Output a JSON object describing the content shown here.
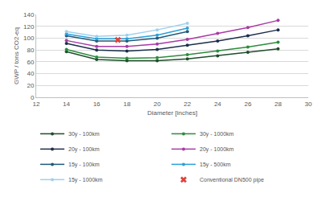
{
  "chart_data": {
    "type": "line",
    "xlabel": "Diameter [inches]",
    "ylabel": "GWP / tons CO2-eq",
    "xlim": [
      12,
      30
    ],
    "xticks": [
      12,
      14,
      16,
      18,
      20,
      22,
      24,
      26,
      28,
      30
    ],
    "ylim": [
      0,
      140
    ],
    "yticks": [
      0,
      20,
      40,
      60,
      80,
      100,
      120,
      140
    ],
    "grid": "y",
    "legend": "bottom",
    "series": [
      {
        "name": "30y - 100km",
        "color": "#1e4d2b",
        "marker": "circle",
        "type": "line",
        "x": [
          14,
          16,
          18,
          20,
          22,
          24,
          26,
          28
        ],
        "values": [
          77,
          64,
          62,
          62,
          65,
          70,
          76,
          82
        ]
      },
      {
        "name": "30y - 1000km",
        "color": "#2e8b3e",
        "marker": "circle",
        "type": "line",
        "x": [
          14,
          16,
          18,
          20,
          22,
          24,
          26,
          28
        ],
        "values": [
          81,
          68,
          66,
          67,
          72,
          78,
          85,
          93
        ]
      },
      {
        "name": "20y - 100km",
        "color": "#1c2e4a",
        "marker": "circle",
        "type": "line",
        "x": [
          14,
          16,
          18,
          20,
          22,
          24,
          26,
          28
        ],
        "values": [
          91,
          80,
          78,
          81,
          88,
          95,
          104,
          114
        ]
      },
      {
        "name": "20y - 1000km",
        "color": "#a93aa6",
        "marker": "circle",
        "type": "line",
        "x": [
          14,
          16,
          18,
          20,
          22,
          24,
          26,
          28
        ],
        "values": [
          96,
          86,
          86,
          90,
          98,
          108,
          118,
          130
        ]
      },
      {
        "name": "15y - 100km",
        "color": "#1f5a7a",
        "marker": "circle",
        "type": "line",
        "x": [
          14,
          16,
          18,
          20,
          22
        ],
        "values": [
          104,
          95,
          95,
          100,
          111
        ]
      },
      {
        "name": "15y - 500km",
        "color": "#2ba0d8",
        "marker": "circle",
        "type": "line",
        "x": [
          14,
          16,
          18,
          20,
          22
        ],
        "values": [
          107,
          99,
          99,
          105,
          117
        ]
      },
      {
        "name": "15y - 1000km",
        "color": "#9fd0ee",
        "marker": "circle",
        "type": "line",
        "x": [
          14,
          16,
          18,
          20,
          22
        ],
        "values": [
          111,
          103,
          105,
          114,
          125
        ]
      },
      {
        "name": "Conventional DN500 pipe",
        "color": "#e0413a",
        "marker": "x",
        "type": "scatter",
        "x": [
          17.4
        ],
        "values": [
          97
        ]
      }
    ]
  }
}
